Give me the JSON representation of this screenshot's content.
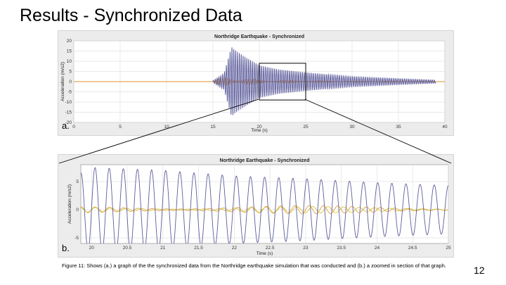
{
  "slide": {
    "title": "Results - Synchronized Data",
    "caption": "Figure 11: Shows (a.) a graph of the the synchronized data from the Northridge earthquake simulation that was conducted and (b.) a zoomed in section of that graph.",
    "page_number": "12"
  },
  "colors": {
    "series_primary": "#5c5c9c",
    "series_secondary": "#e0902c",
    "series_tertiary": "#d0c020",
    "zoom_lines": "#000000"
  },
  "chart_data": [
    {
      "type": "line",
      "panel_label": "a.",
      "title": "Northridge Earthquake - Synchronized",
      "xlabel": "Time (s)",
      "ylabel": "Acceleration (m/s2)",
      "xlim": [
        0,
        40
      ],
      "ylim": [
        -20,
        20
      ],
      "xticks": [
        0,
        5,
        10,
        15,
        20,
        25,
        30,
        35,
        40
      ],
      "yticks": [
        -20,
        -15,
        -10,
        -5,
        0,
        5,
        10,
        15,
        20
      ],
      "grid": true,
      "zoom_box": {
        "x": [
          20,
          25
        ],
        "y": [
          -9,
          9
        ]
      },
      "series": [
        {
          "role": "primary",
          "color_key": "series_primary",
          "envelope": {
            "t": [
              15,
              16.2,
              17,
              17.5,
              18.5,
              20,
              22,
              25,
              30,
              35,
              39
            ],
            "amp": [
              0.5,
              4,
              17,
              15,
              12,
              8,
              6,
              4.5,
              2.5,
              1.5,
              0.8
            ]
          },
          "cycles_per_second": 5.0,
          "x_start": 15,
          "x_end": 39
        },
        {
          "role": "secondary",
          "color_key": "series_secondary",
          "envelope": {
            "t": [
              15,
              16,
              17,
              18,
              20,
              25,
              30,
              39
            ],
            "amp": [
              0.3,
              2,
              3,
              2,
              1,
              0.6,
              0.3,
              0.2
            ]
          },
          "cycles_per_second": 4.0,
          "x_start": 15,
          "x_end": 39
        },
        {
          "role": "baseline",
          "color_key": "series_secondary",
          "value": 0,
          "x_start": 0,
          "x_end": 40
        }
      ]
    },
    {
      "type": "line",
      "panel_label": "b.",
      "title": "Northridge Earthquake - Synchronized",
      "xlabel": "Time (s)",
      "ylabel": "Acceleration (m/s2)",
      "xlim": [
        19.85,
        25
      ],
      "ylim": [
        -6,
        8
      ],
      "xticks": [
        20,
        20.5,
        21,
        21.5,
        22,
        22.5,
        23,
        23.5,
        24,
        24.5,
        25
      ],
      "yticks": [
        -5,
        0,
        5
      ],
      "grid": true,
      "series": [
        {
          "role": "primary",
          "color_key": "series_primary",
          "envelope": {
            "t": [
              19.85,
              20,
              21,
              22,
              23,
              24,
              25
            ],
            "amp": [
              6.5,
              7.5,
              7,
              6,
              5.5,
              4.8,
              4.3
            ]
          },
          "cycles_per_second": 5.05,
          "x_start": 19.85,
          "x_end": 25
        },
        {
          "role": "secondary",
          "color_key": "series_secondary",
          "envelope": {
            "t": [
              19.85,
              22,
              25
            ],
            "amp": [
              0.6,
              0.8,
              0.6
            ]
          },
          "cycles_per_second": 5.0,
          "x_start": 19.85,
          "x_end": 25
        },
        {
          "role": "tertiary",
          "color_key": "series_tertiary",
          "envelope": {
            "t": [
              19.85,
              22,
              25
            ],
            "amp": [
              0.5,
              0.6,
              0.5
            ]
          },
          "cycles_per_second": 4.6,
          "x_start": 19.85,
          "x_end": 25
        }
      ]
    }
  ]
}
